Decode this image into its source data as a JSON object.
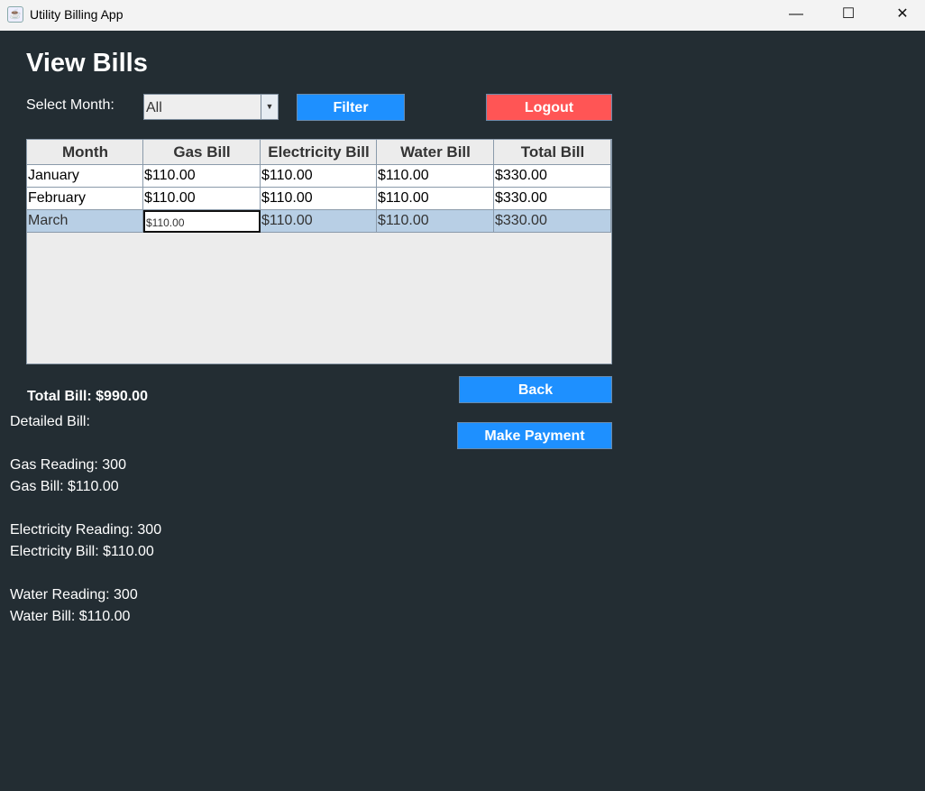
{
  "window": {
    "title": "Utility Billing App"
  },
  "page": {
    "title": "View Bills"
  },
  "filter": {
    "label": "Select Month:",
    "selected": "All",
    "filter_button": "Filter",
    "logout_button": "Logout"
  },
  "table": {
    "columns": [
      "Month",
      "Gas Bill",
      "Electricity Bill",
      "Water Bill",
      "Total Bill"
    ],
    "rows": [
      [
        "January",
        "$110.00",
        "$110.00",
        "$110.00",
        "$330.00"
      ],
      [
        "February",
        "$110.00",
        "$110.00",
        "$110.00",
        "$330.00"
      ],
      [
        "March",
        "$110.00",
        "$110.00",
        "$110.00",
        "$330.00"
      ]
    ],
    "selected_row": 2
  },
  "summary": {
    "total": "Total Bill: $990.00"
  },
  "actions": {
    "back": "Back",
    "make_payment": "Make Payment"
  },
  "detail": {
    "text": "Detailed Bill:\n\nGas Reading: 300\nGas Bill: $110.00\n\nElectricity Reading: 300\nElectricity Bill: $110.00\n\nWater Reading: 300\nWater Bill: $110.00"
  },
  "colors": {
    "background": "#232d33",
    "primary": "#1e90ff",
    "danger": "#ff5555",
    "selection": "#b8cfe5"
  }
}
